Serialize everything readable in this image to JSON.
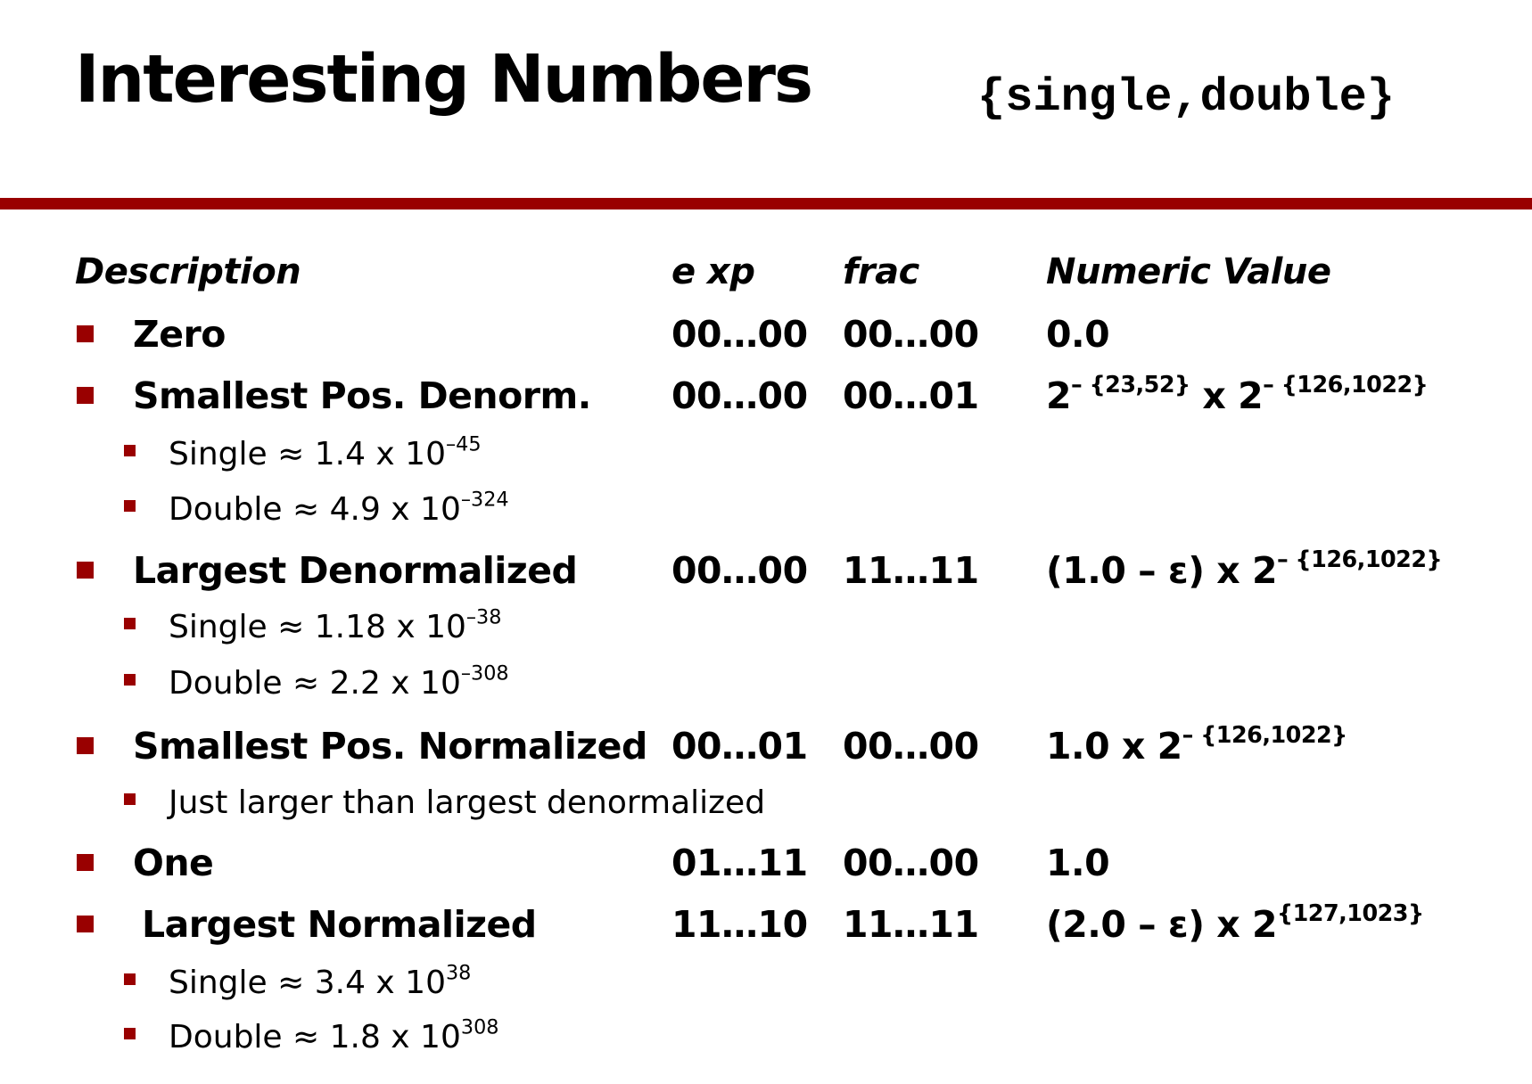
{
  "title": "Interesting Numbers",
  "subtitle": "{single,double}",
  "colors": {
    "accent": "#990000"
  },
  "headers": {
    "description": "Description",
    "exp": "e xp",
    "frac": "frac",
    "numeric": "Numeric Value"
  },
  "rows": [
    {
      "description": "Zero",
      "exp": "00…00",
      "frac": "00…00",
      "value_base": "0.0"
    },
    {
      "description": "Smallest Pos. Denorm.",
      "exp": "00…00",
      "frac": "00…01",
      "value_base": "2",
      "value_sup1": "– {23,52}",
      "value_mid": " x 2",
      "value_sup2": "– {126,1022}",
      "subs": [
        {
          "text": "Single ≈ 1.4 x 10",
          "sup": "–45"
        },
        {
          "text": "Double ≈ 4.9 x 10",
          "sup": "–324"
        }
      ]
    },
    {
      "description": "Largest Denormalized",
      "exp": "00…00",
      "frac": "11…11",
      "value_base": "(1.0 – ε) x 2",
      "value_sup1": "– {126,1022}",
      "subs": [
        {
          "text": "Single ≈ 1.18 x 10",
          "sup": "–38"
        },
        {
          "text": "Double ≈ 2.2 x 10",
          "sup": "–308"
        }
      ]
    },
    {
      "description": "Smallest Pos. Normalized",
      "exp": "00…01",
      "frac": "00…00",
      "value_base": "1.0 x 2",
      "value_sup1": "– {126,1022}",
      "subs": [
        {
          "text": "Just larger than largest denormalized"
        }
      ]
    },
    {
      "description": "One",
      "exp": "01…11",
      "frac": "00…00",
      "value_base": "1.0"
    },
    {
      "description": "Largest Normalized",
      "exp": "11…10",
      "frac": "11…11",
      "value_base": "(2.0 – ε) x 2",
      "value_sup1": "{127,1023}",
      "subs": [
        {
          "text": "Single ≈ 3.4 x 10",
          "sup": "38"
        },
        {
          "text": "Double ≈ 1.8 x 10",
          "sup": "308"
        }
      ]
    }
  ]
}
